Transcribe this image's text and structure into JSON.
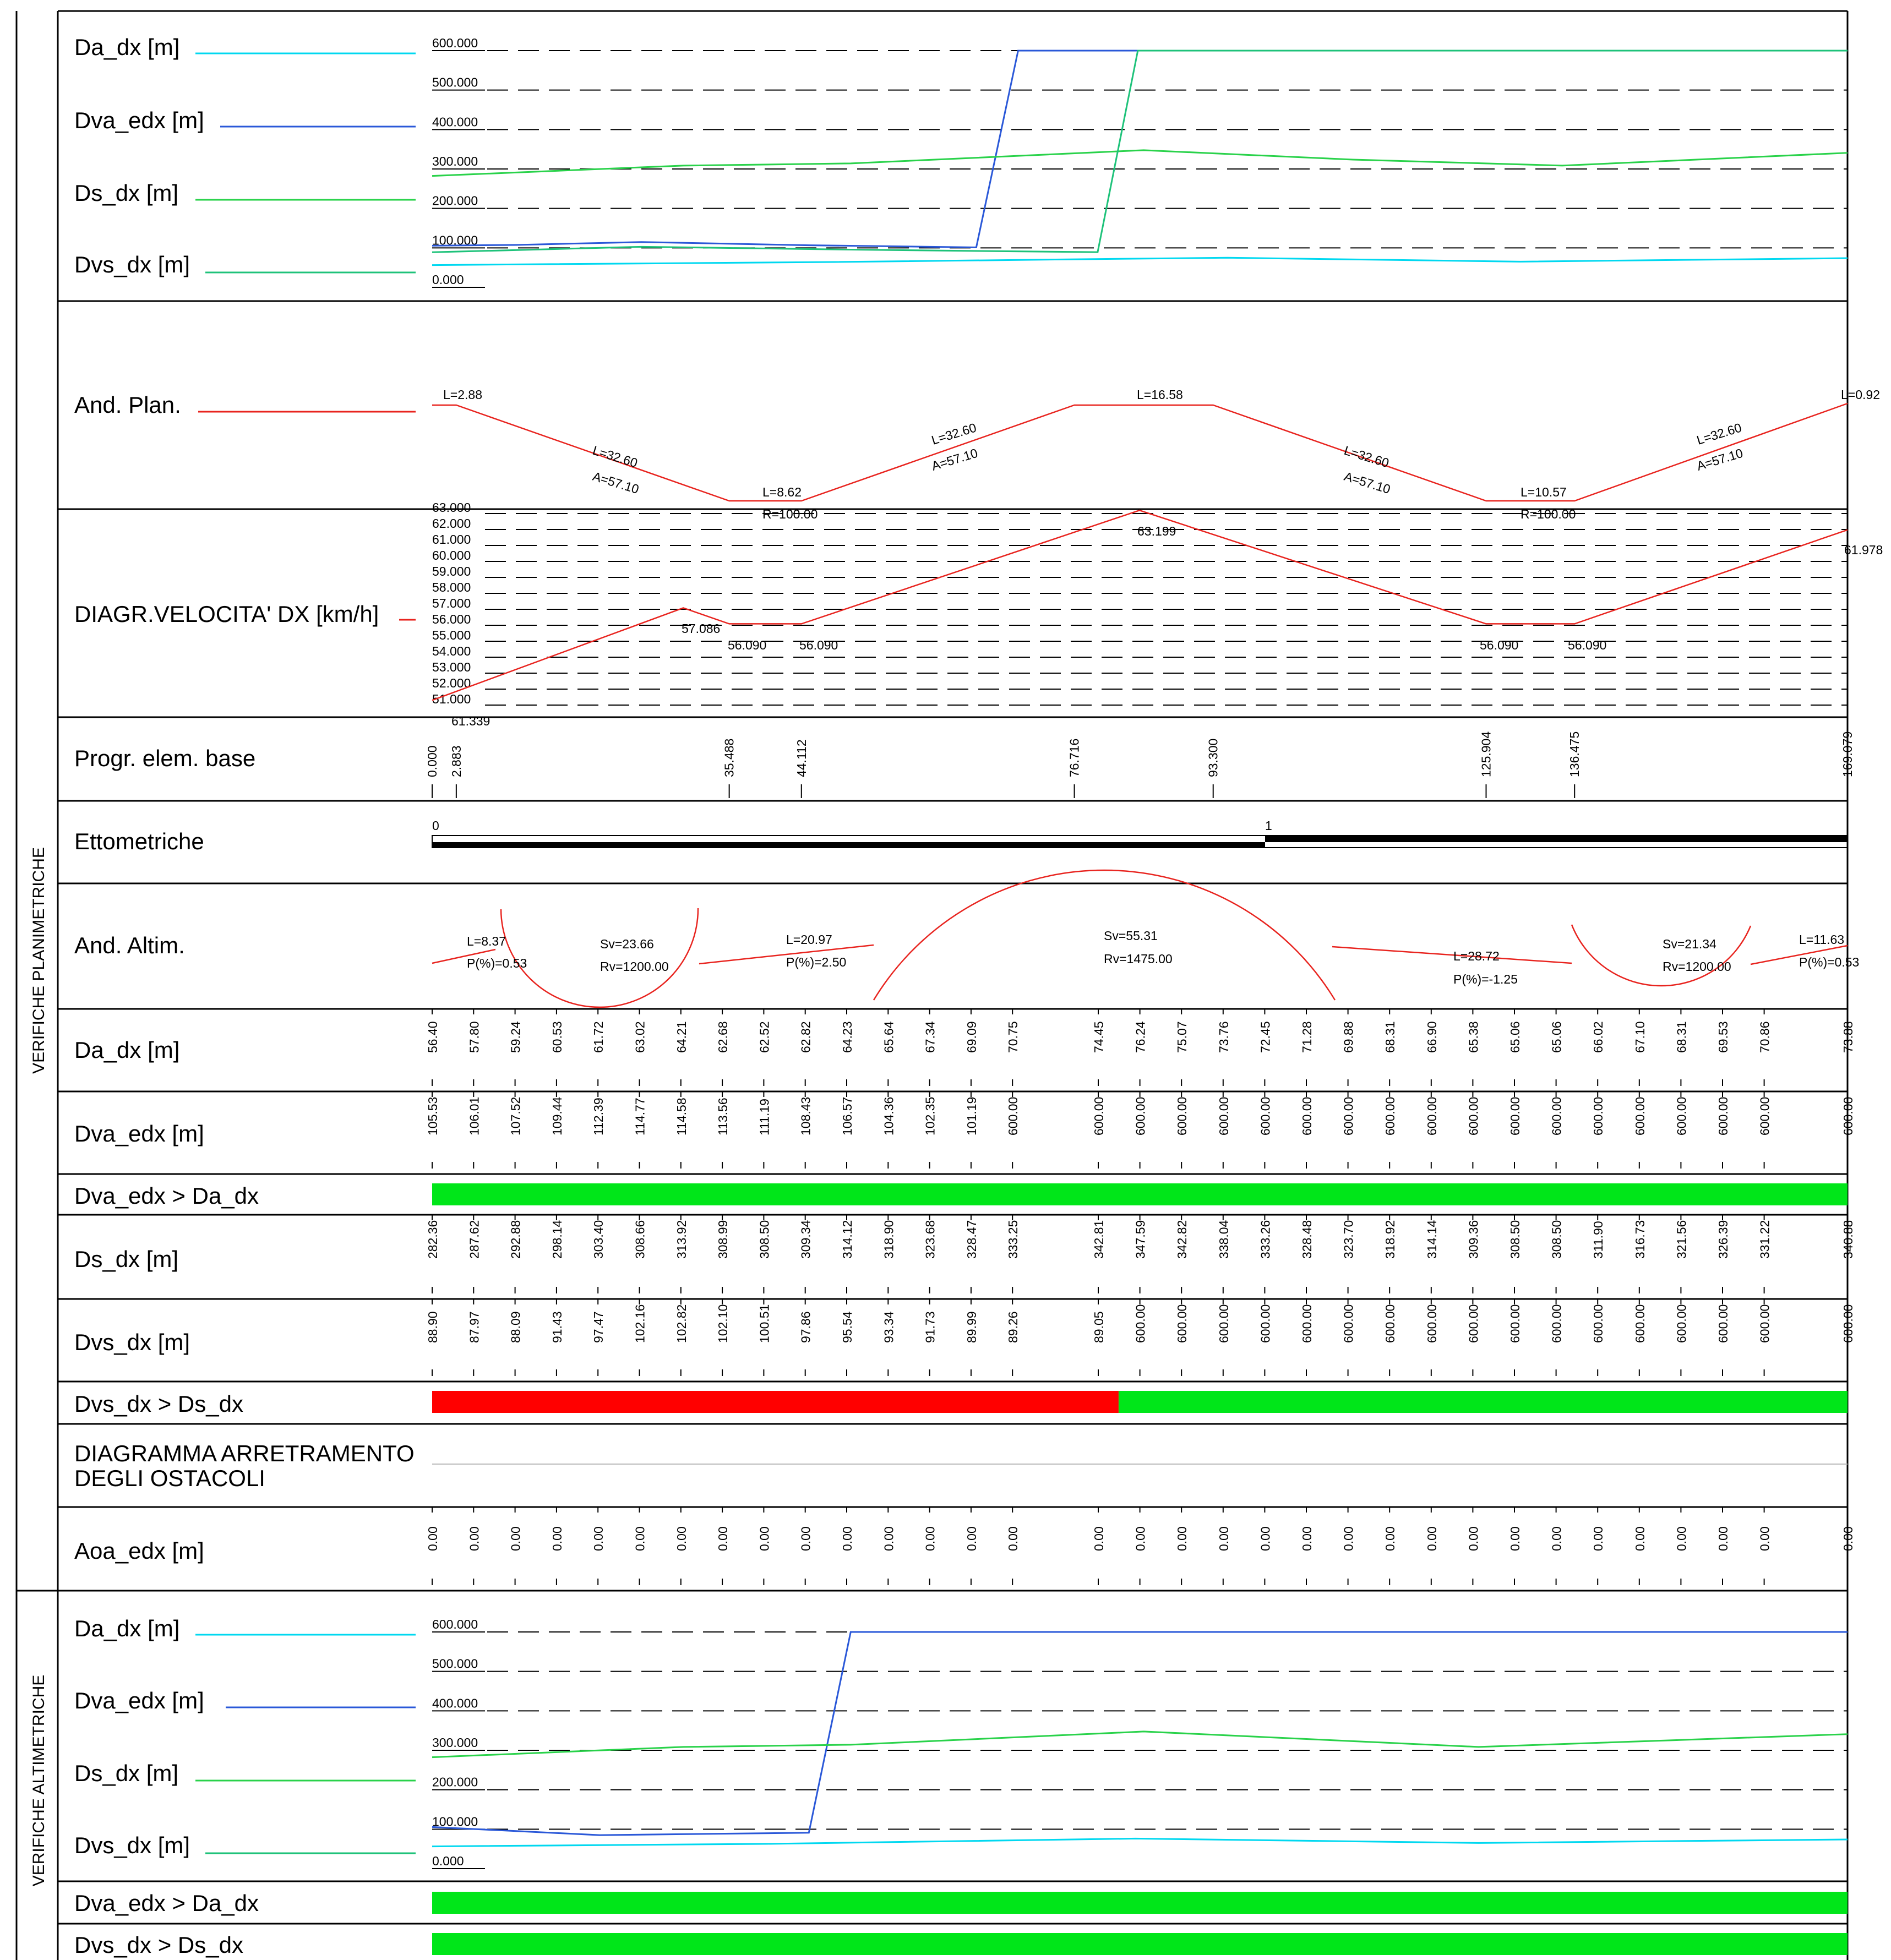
{
  "colors": {
    "Da": "#00d8f0",
    "Dva": "#2a58d8",
    "Ds": "#29d24a",
    "Dvs": "#1ec27a",
    "red": "#e8241f",
    "okBar": "#00e619",
    "failBar": "#ff0000"
  },
  "sections": {
    "planimetriche": "VERIFICHE PLANIMETRICHE",
    "altimetriche": "VERIFICHE ALTIMETRICHE"
  },
  "legend": {
    "Da": "Da_dx [m]",
    "Dva": "Dva_edx [m]",
    "Ds": "Ds_dx [m]",
    "Dvs": "Dvs_dx [m]"
  },
  "rows": {
    "andPlan": "And. Plan.",
    "speed": "DIAGR.VELOCITA' DX [km/h]",
    "progr": "Progr. elem. base",
    "ettometriche": "Ettometriche",
    "andAltim": "And. Altim.",
    "Da": "Da_dx [m]",
    "Dva": "Dva_edx [m]",
    "check1": "Dva_edx > Da_dx",
    "Ds": "Ds_dx [m]",
    "Dvs": "Dvs_dx [m]",
    "check2": "Dvs_dx > Ds_dx",
    "arretramento1": "DIAGRAMMA ARRETRAMENTO",
    "arretramento2": "DEGLI OSTACOLI",
    "Aoa": "Aoa_edx [m]",
    "alt_check1": "Dva_edx > Da_dx",
    "alt_check2": "Dvs_dx > Ds_dx"
  },
  "chart_data": [
    {
      "type": "line",
      "name": "Verifiche planimetriche - distanze",
      "ylim": [
        0,
        600
      ],
      "y_ticks": [
        "600.000",
        "500.000",
        "400.000",
        "300.000",
        "200.000",
        "100.000",
        "0.000"
      ],
      "xlim": [
        0,
        169.079
      ],
      "series": [
        {
          "name": "Da_dx [m]",
          "points": [
            [
              0,
              56.4
            ],
            [
              48,
              64.2
            ],
            [
              76,
              70.8
            ],
            [
              95,
              75.0
            ],
            [
              130,
              65.1
            ],
            [
              169.079,
              73.9
            ]
          ]
        },
        {
          "name": "Dva_edx [m]",
          "points": [
            [
              0,
              105.5
            ],
            [
              10,
              107.5
            ],
            [
              25,
              114.8
            ],
            [
              45,
              106.6
            ],
            [
              65,
              101.2
            ],
            [
              70,
              600
            ],
            [
              169.079,
              600
            ]
          ]
        },
        {
          "name": "Ds_dx [m]",
          "points": [
            [
              0,
              282.4
            ],
            [
              30,
              308.5
            ],
            [
              50,
              314.1
            ],
            [
              70,
              333.3
            ],
            [
              85,
              347.6
            ],
            [
              110,
              323.7
            ],
            [
              135,
              308.5
            ],
            [
              169.079,
              340.9
            ]
          ]
        },
        {
          "name": "Dvs_dx [m]",
          "points": [
            [
              0,
              88.9
            ],
            [
              25,
              102.8
            ],
            [
              50,
              95.5
            ],
            [
              79.5,
              89.1
            ],
            [
              84.3,
              600
            ],
            [
              169.079,
              600
            ]
          ]
        }
      ]
    },
    {
      "type": "line",
      "name": "And. Plan.",
      "labels": [
        "L=2.88",
        "L=32.60",
        "A=57.10",
        "L=8.62",
        "R=100.00",
        "L=32.60",
        "A=57.10",
        "L=16.58",
        "L=32.60",
        "A=57.10",
        "L=10.57",
        "R=100.00",
        "L=32.60",
        "A=57.10",
        "L=0.92"
      ]
    },
    {
      "type": "line",
      "name": "DIAGR.VELOCITA' DX [km/h]",
      "ylim": [
        51,
        63
      ],
      "y_ticks": [
        "63.000",
        "62.000",
        "61.000",
        "60.000",
        "59.000",
        "58.000",
        "57.000",
        "56.000",
        "55.000",
        "54.000",
        "53.000",
        "52.000",
        "51.000"
      ],
      "points": [
        [
          0,
          51.3
        ],
        [
          30,
          57.086
        ],
        [
          35.488,
          56.09
        ],
        [
          44.112,
          56.09
        ],
        [
          84.5,
          63.199
        ],
        [
          125.904,
          56.09
        ],
        [
          136.475,
          56.09
        ],
        [
          169.079,
          61.978
        ]
      ],
      "labels": [
        "57.086",
        "56.090",
        "56.090",
        "63.199",
        "56.090",
        "56.090",
        "61.978",
        "61.339"
      ]
    },
    {
      "type": "table",
      "name": "Progr. elem. base",
      "values": [
        "0.000",
        "2.883",
        "35.488",
        "44.112",
        "76.716",
        "93.300",
        "125.904",
        "136.475",
        "169.079"
      ]
    },
    {
      "type": "table",
      "name": "Ettometriche",
      "marks": [
        "0",
        "1"
      ]
    },
    {
      "type": "line",
      "name": "And. Altim.",
      "labels": [
        "L=8.37",
        "P(%)=0.53",
        "Sv=23.66",
        "Rv=1200.00",
        "L=20.97",
        "P(%)=2.50",
        "Sv=55.31",
        "Rv=1475.00",
        "L=28.72",
        "P(%)=-1.25",
        "Sv=21.34",
        "Rv=1200.00",
        "L=11.63",
        "P(%)=0.53"
      ]
    },
    {
      "type": "table",
      "name": "Da_dx [m]",
      "values": [
        "56.40",
        "57.80",
        "59.24",
        "60.53",
        "61.72",
        "63.02",
        "64.21",
        "62.68",
        "62.52",
        "62.82",
        "64.23",
        "65.64",
        "67.34",
        "69.09",
        "70.75",
        "74.45",
        "76.24",
        "75.07",
        "73.76",
        "72.45",
        "71.28",
        "69.88",
        "68.31",
        "66.90",
        "65.38",
        "65.06",
        "65.06",
        "66.02",
        "67.10",
        "68.31",
        "69.53",
        "70.86",
        "73.88"
      ]
    },
    {
      "type": "table",
      "name": "Dva_edx [m]",
      "values": [
        "105.53",
        "106.01",
        "107.52",
        "109.44",
        "112.39",
        "114.77",
        "114.58",
        "113.56",
        "111.19",
        "108.43",
        "106.57",
        "104.36",
        "102.35",
        "101.19",
        "600.00",
        "600.00",
        "600.00",
        "600.00",
        "600.00",
        "600.00",
        "600.00",
        "600.00",
        "600.00",
        "600.00",
        "600.00",
        "600.00",
        "600.00",
        "600.00",
        "600.00",
        "600.00",
        "600.00",
        "600.00",
        "600.00"
      ]
    },
    {
      "type": "table",
      "name": "Ds_dx [m]",
      "values": [
        "282.36",
        "287.62",
        "292.88",
        "298.14",
        "303.40",
        "308.66",
        "313.92",
        "308.99",
        "308.50",
        "309.34",
        "314.12",
        "318.90",
        "323.68",
        "328.47",
        "333.25",
        "342.81",
        "347.59",
        "342.82",
        "338.04",
        "333.26",
        "328.48",
        "323.70",
        "318.92",
        "314.14",
        "309.36",
        "308.50",
        "308.50",
        "311.90",
        "316.73",
        "321.56",
        "326.39",
        "331.22",
        "340.88"
      ]
    },
    {
      "type": "table",
      "name": "Dvs_dx [m]",
      "values": [
        "88.90",
        "87.97",
        "88.09",
        "91.43",
        "97.47",
        "102.16",
        "102.82",
        "102.10",
        "100.51",
        "97.86",
        "95.54",
        "93.34",
        "91.73",
        "89.99",
        "89.26",
        "89.05",
        "600.00",
        "600.00",
        "600.00",
        "600.00",
        "600.00",
        "600.00",
        "600.00",
        "600.00",
        "600.00",
        "600.00",
        "600.00",
        "600.00",
        "600.00",
        "600.00",
        "600.00",
        "600.00",
        "600.00"
      ]
    },
    {
      "type": "table",
      "name": "Aoa_edx [m]",
      "values": [
        "0.00",
        "0.00",
        "0.00",
        "0.00",
        "0.00",
        "0.00",
        "0.00",
        "0.00",
        "0.00",
        "0.00",
        "0.00",
        "0.00",
        "0.00",
        "0.00",
        "0.00",
        "0.00",
        "0.00",
        "0.00",
        "0.00",
        "0.00",
        "0.00",
        "0.00",
        "0.00",
        "0.00",
        "0.00",
        "0.00",
        "0.00",
        "0.00",
        "0.00",
        "0.00",
        "0.00",
        "0.00",
        "0.00"
      ]
    },
    {
      "type": "line",
      "name": "Verifiche altimetriche - distanze",
      "ylim": [
        0,
        600
      ],
      "y_ticks": [
        "600.000",
        "500.000",
        "400.000",
        "300.000",
        "200.000",
        "100.000",
        "0.000"
      ],
      "xlim": [
        0,
        169.079
      ],
      "series": [
        {
          "name": "Da_dx [m]",
          "points": [
            [
              0,
              56.4
            ],
            [
              40,
              62.8
            ],
            [
              84,
              76.2
            ],
            [
              125,
              65.1
            ],
            [
              169.079,
              73.9
            ]
          ]
        },
        {
          "name": "Dva_edx [m]",
          "points": [
            [
              0,
              105.5
            ],
            [
              20,
              85
            ],
            [
              45,
              91
            ],
            [
              50,
              600
            ],
            [
              169.079,
              600
            ]
          ]
        },
        {
          "name": "Ds_dx [m]",
          "points": [
            [
              0,
              282.4
            ],
            [
              30,
              308.5
            ],
            [
              50,
              314.1
            ],
            [
              85,
              347.6
            ],
            [
              125,
              308.5
            ],
            [
              169.079,
              340.9
            ]
          ]
        }
      ]
    }
  ],
  "checks": {
    "pl_check1": [
      {
        "from": 0,
        "to": 1,
        "ok": true
      }
    ],
    "pl_check2": [
      {
        "from": 0,
        "to": 0.485,
        "ok": false
      },
      {
        "from": 0.485,
        "to": 1,
        "ok": true
      }
    ],
    "al_check1": [
      {
        "from": 0,
        "to": 1,
        "ok": true
      }
    ],
    "al_check2": [
      {
        "from": 0,
        "to": 1,
        "ok": true
      }
    ]
  }
}
